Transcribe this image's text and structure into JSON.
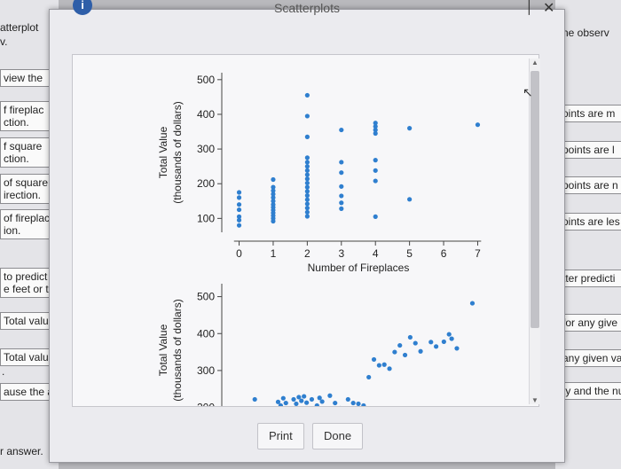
{
  "dialog": {
    "title": "Scatterplots",
    "info_icon": "info-icon",
    "print_label": "Print",
    "done_label": "Done"
  },
  "background_left": [
    {
      "text": "atterplot",
      "boxed": false
    },
    {
      "text": "v.",
      "boxed": false
    },
    {
      "text": "view the",
      "boxed": true
    },
    {
      "text": "f fireplac\nction.",
      "boxed": true
    },
    {
      "text": "f square\nction.",
      "boxed": true
    },
    {
      "text": "of square\nirection.",
      "boxed": true
    },
    {
      "text": "of fireplac\nion.",
      "boxed": true
    },
    {
      "text": "to predict\ne feet or t",
      "boxed": true
    },
    {
      "text": "Total valu",
      "boxed": true
    },
    {
      "text": "Total value",
      "boxed": true
    },
    {
      "text": ".",
      "boxed": false
    },
    {
      "text": "ause the as",
      "boxed": true
    },
    {
      "text": "r answer.",
      "boxed": false
    }
  ],
  "background_right": [
    {
      "text": "ne observ"
    },
    {
      "text": "oints are m"
    },
    {
      "text": "points are l"
    },
    {
      "text": "points are n"
    },
    {
      "text": "oints are les"
    },
    {
      "text": "tter predicti"
    },
    {
      "text": "for any give"
    },
    {
      "text": "any given va"
    },
    {
      "text": "ty and the nu"
    }
  ],
  "chart_data": [
    {
      "type": "scatter",
      "xlabel": "Number of Fireplaces",
      "ylabel": "Total Value\n(thousands of dollars)",
      "xlim": [
        -0.3,
        7.3
      ],
      "ylim": [
        60,
        520
      ],
      "x_ticks": [
        0,
        1,
        2,
        3,
        4,
        5,
        6,
        7
      ],
      "y_ticks": [
        100,
        200,
        300,
        400,
        500
      ],
      "points": [
        [
          0,
          175
        ],
        [
          0,
          160
        ],
        [
          0,
          140
        ],
        [
          0,
          125
        ],
        [
          0,
          105
        ],
        [
          0,
          95
        ],
        [
          0,
          80
        ],
        [
          1,
          212
        ],
        [
          1,
          190
        ],
        [
          1,
          180
        ],
        [
          1,
          170
        ],
        [
          1,
          160
        ],
        [
          1,
          150
        ],
        [
          1,
          140
        ],
        [
          1,
          132
        ],
        [
          1,
          124
        ],
        [
          1,
          116
        ],
        [
          1,
          108
        ],
        [
          1,
          100
        ],
        [
          1,
          92
        ],
        [
          2,
          455
        ],
        [
          2,
          395
        ],
        [
          2,
          335
        ],
        [
          2,
          275
        ],
        [
          2,
          262
        ],
        [
          2,
          250
        ],
        [
          2,
          238
        ],
        [
          2,
          226
        ],
        [
          2,
          214
        ],
        [
          2,
          202
        ],
        [
          2,
          190
        ],
        [
          2,
          178
        ],
        [
          2,
          166
        ],
        [
          2,
          154
        ],
        [
          2,
          142
        ],
        [
          2,
          130
        ],
        [
          2,
          118
        ],
        [
          2,
          106
        ],
        [
          3,
          355
        ],
        [
          3,
          262
        ],
        [
          3,
          232
        ],
        [
          3,
          192
        ],
        [
          3,
          165
        ],
        [
          3,
          145
        ],
        [
          3,
          128
        ],
        [
          4,
          375
        ],
        [
          4,
          365
        ],
        [
          4,
          355
        ],
        [
          4,
          345
        ],
        [
          4,
          268
        ],
        [
          4,
          238
        ],
        [
          4,
          208
        ],
        [
          4,
          105
        ],
        [
          5,
          360
        ],
        [
          5,
          155
        ],
        [
          7,
          370
        ]
      ]
    },
    {
      "type": "scatter",
      "ylabel": "Total Value\n(thousands of dollars)",
      "y_ticks": [
        200,
        300,
        400,
        500
      ],
      "ylim": [
        175,
        535
      ],
      "points": [
        [
          1,
          222
        ],
        [
          1.9,
          215
        ],
        [
          2.0,
          205
        ],
        [
          2.1,
          225
        ],
        [
          2.2,
          212
        ],
        [
          2.5,
          222
        ],
        [
          2.6,
          210
        ],
        [
          2.7,
          228
        ],
        [
          2.8,
          218
        ],
        [
          2.9,
          230
        ],
        [
          3.0,
          213
        ],
        [
          3.2,
          222
        ],
        [
          3.4,
          205
        ],
        [
          3.5,
          226
        ],
        [
          3.6,
          216
        ],
        [
          3.9,
          232
        ],
        [
          4.1,
          212
        ],
        [
          4.3,
          198
        ],
        [
          4.6,
          222
        ],
        [
          4.8,
          212
        ],
        [
          5.0,
          210
        ],
        [
          5.2,
          205
        ],
        [
          5.4,
          282
        ],
        [
          5.6,
          330
        ],
        [
          5.8,
          314
        ],
        [
          6.0,
          316
        ],
        [
          6.2,
          305
        ],
        [
          6.4,
          350
        ],
        [
          6.6,
          368
        ],
        [
          6.8,
          342
        ],
        [
          7.0,
          390
        ],
        [
          7.2,
          374
        ],
        [
          7.4,
          352
        ],
        [
          7.8,
          377
        ],
        [
          8.0,
          365
        ],
        [
          8.3,
          378
        ],
        [
          8.5,
          398
        ],
        [
          8.6,
          386
        ],
        [
          8.8,
          360
        ],
        [
          9.4,
          482
        ]
      ]
    }
  ]
}
